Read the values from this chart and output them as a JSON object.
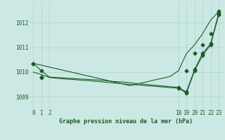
{
  "bg_color": "#cce8e4",
  "grid_color": "#b0d8d0",
  "line_color": "#1a5c28",
  "title": "Graphe pression niveau de la mer (hPa)",
  "xlim": [
    -0.5,
    23.5
  ],
  "ylim": [
    1008.5,
    1012.8
  ],
  "yticks": [
    1009,
    1010,
    1011,
    1012
  ],
  "xticks": [
    0,
    1,
    2,
    18,
    19,
    20,
    21,
    22,
    23
  ],
  "line1_x": [
    0,
    1,
    2,
    3,
    4,
    5,
    6,
    7,
    8,
    9,
    10,
    11,
    12,
    13,
    14,
    15,
    16,
    17,
    18,
    19,
    20,
    21,
    22,
    23
  ],
  "line1_y": [
    1010.35,
    1010.28,
    1010.2,
    1010.13,
    1010.05,
    1009.98,
    1009.9,
    1009.83,
    1009.75,
    1009.68,
    1009.6,
    1009.53,
    1009.45,
    1009.53,
    1009.6,
    1009.68,
    1009.75,
    1009.83,
    1010.05,
    1010.75,
    1011.1,
    1011.55,
    1012.1,
    1012.45
  ],
  "line2_x": [
    0,
    1,
    2,
    3,
    4,
    5,
    6,
    7,
    8,
    9,
    10,
    11,
    12,
    13,
    14,
    15,
    16,
    17,
    18,
    19,
    20,
    21,
    22,
    23
  ],
  "line2_y": [
    1010.35,
    1010.05,
    1009.8,
    1009.78,
    1009.76,
    1009.74,
    1009.72,
    1009.7,
    1009.68,
    1009.65,
    1009.62,
    1009.6,
    1009.57,
    1009.53,
    1009.5,
    1009.47,
    1009.44,
    1009.41,
    1009.38,
    1009.2,
    1010.1,
    1010.75,
    1011.15,
    1012.38
  ],
  "line3_x": [
    0,
    1,
    2,
    3,
    4,
    5,
    6,
    7,
    8,
    9,
    10,
    11,
    12,
    13,
    14,
    15,
    16,
    17,
    18,
    19,
    20,
    21,
    22,
    23
  ],
  "line3_y": [
    1010.0,
    1009.9,
    1009.78,
    1009.75,
    1009.72,
    1009.7,
    1009.67,
    1009.65,
    1009.62,
    1009.59,
    1009.56,
    1009.53,
    1009.5,
    1009.48,
    1009.45,
    1009.43,
    1009.4,
    1009.37,
    1009.35,
    1009.15,
    1010.05,
    1010.68,
    1011.1,
    1012.32
  ],
  "marker_x1": [
    0,
    1,
    19,
    20,
    21,
    22,
    23
  ],
  "marker_y1": [
    1010.35,
    1010.05,
    1010.05,
    1010.75,
    1011.1,
    1011.55,
    1012.45
  ],
  "marker_x2": [
    0,
    1,
    18,
    19,
    20,
    21,
    22,
    23
  ],
  "marker_y2": [
    1010.35,
    1009.8,
    1009.38,
    1009.2,
    1010.1,
    1010.75,
    1011.15,
    1012.38
  ],
  "marker_x3": [
    1,
    18,
    19,
    20,
    21,
    22,
    23
  ],
  "marker_y3": [
    1009.78,
    1009.35,
    1009.15,
    1010.05,
    1010.68,
    1011.1,
    1012.32
  ]
}
